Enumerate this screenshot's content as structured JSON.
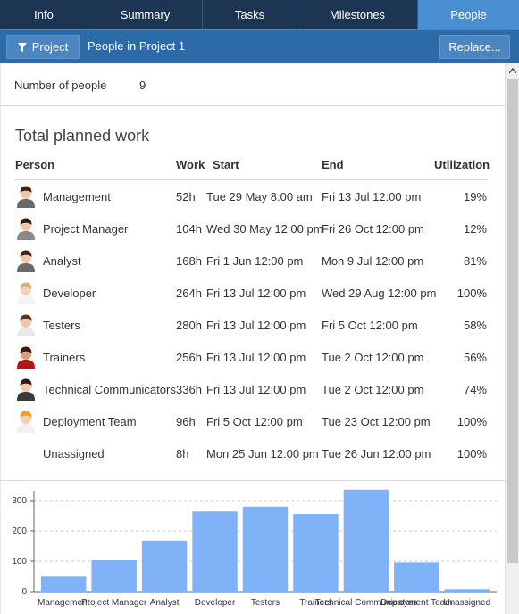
{
  "tabs": [
    {
      "label": "Info",
      "active": false
    },
    {
      "label": "Summary",
      "active": false
    },
    {
      "label": "Tasks",
      "active": false
    },
    {
      "label": "Milestones",
      "active": false
    },
    {
      "label": "People",
      "active": true
    }
  ],
  "toolbar": {
    "filter_label": "Project",
    "title": "People in Project 1",
    "replace_label": "Replace..."
  },
  "summary": {
    "count_label": "Number of people",
    "count_value": "9"
  },
  "section_title": "Total planned work",
  "columns": {
    "person": "Person",
    "work": "Work",
    "start": "Start",
    "end": "End",
    "utilization": "Utilization"
  },
  "rows": [
    {
      "name": "Management",
      "work": "52h",
      "start": "Tue 29 May 8:00 am",
      "end": "Fri 13 Jul 12:00 pm",
      "utilization": "19%",
      "avatar": "woman-dark-hair-icon"
    },
    {
      "name": "Project Manager",
      "work": "104h",
      "start": "Wed 30 May 12:00 pm",
      "end": "Fri 26 Oct 12:00 pm",
      "utilization": "12%",
      "avatar": "man-dark-hair-icon"
    },
    {
      "name": "Analyst",
      "work": "168h",
      "start": "Fri 1 Jun 12:00 pm",
      "end": "Mon 9 Jul 12:00 pm",
      "utilization": "81%",
      "avatar": "woman-dark-hair-icon"
    },
    {
      "name": "Developer",
      "work": "264h",
      "start": "Fri 13 Jul 12:00 pm",
      "end": "Wed 29 Aug 12:00 pm",
      "utilization": "100%",
      "avatar": "man-light-hair-icon"
    },
    {
      "name": "Testers",
      "work": "280h",
      "start": "Fri 13 Jul 12:00 pm",
      "end": "Fri 5 Oct 12:00 pm",
      "utilization": "58%",
      "avatar": "woman-brown-hair-icon"
    },
    {
      "name": "Trainers",
      "work": "256h",
      "start": "Fri 13 Jul 12:00 pm",
      "end": "Tue 2 Oct 12:00 pm",
      "utilization": "56%",
      "avatar": "woman-red-shirt-icon"
    },
    {
      "name": "Technical Communicators",
      "work": "336h",
      "start": "Fri 13 Jul 12:00 pm",
      "end": "Tue 2 Oct 12:00 pm",
      "utilization": "74%",
      "avatar": "man-dark-suit-icon"
    },
    {
      "name": "Deployment Team",
      "work": "96h",
      "start": "Fri 5 Oct 12:00 pm",
      "end": "Tue 23 Oct 12:00 pm",
      "utilization": "100%",
      "avatar": "worker-hardhat-icon"
    },
    {
      "name": "Unassigned",
      "work": "8h",
      "start": "Mon 25 Jun 12:00 pm",
      "end": "Tue 26 Jun 12:00 pm",
      "utilization": "100%",
      "avatar": ""
    }
  ],
  "chart_data": {
    "type": "bar",
    "categories": [
      "Management",
      "Project Manager",
      "Analyst",
      "Developer",
      "Testers",
      "Trainers",
      "Technical Communicators",
      "Deployment Team",
      "Unassigned"
    ],
    "values": [
      52,
      104,
      168,
      264,
      280,
      256,
      336,
      96,
      8
    ],
    "yticks": [
      "0",
      "100",
      "200",
      "300"
    ],
    "ylim": [
      0,
      300
    ],
    "title": "",
    "xlabel": "",
    "ylabel": "",
    "bar_color": "#7fb2f7"
  },
  "colors": {
    "tab_bg": "#1c3553",
    "tab_active": "#4a90d0",
    "toolbar_bg": "#2c6aa8",
    "button_bg": "#4c86c0"
  }
}
